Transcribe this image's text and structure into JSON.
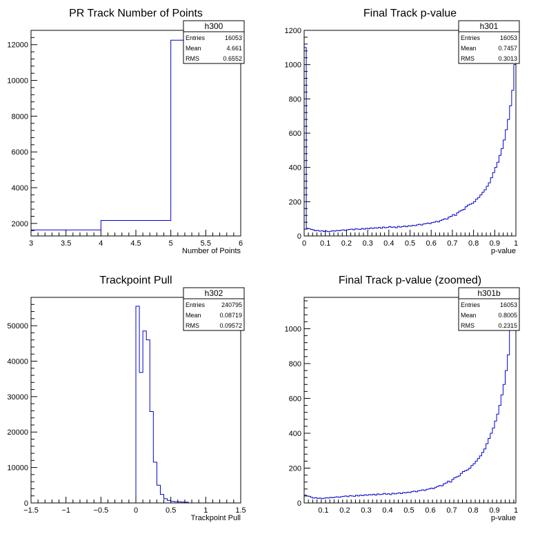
{
  "chart_data": [
    {
      "type": "histogram",
      "title": "PR Track Number of Points",
      "xlabel": "Number of Points",
      "ylabel": "",
      "xlim": [
        3,
        6
      ],
      "ylim": [
        1300,
        12800
      ],
      "xticks": [
        3,
        3.5,
        4,
        4.5,
        5,
        5.5,
        6
      ],
      "xtick_labels": [
        "3",
        "3.5",
        "4",
        "4.5",
        "5",
        "5.5",
        "6"
      ],
      "yticks": [
        2000,
        4000,
        6000,
        8000,
        10000,
        12000
      ],
      "ytick_labels": [
        "2000",
        "4000",
        "6000",
        "8000",
        "10000",
        "12000"
      ],
      "bin_edges": [
        3,
        4,
        5,
        6
      ],
      "counts": [
        1640,
        2170,
        12250
      ],
      "line_color": "#0000cc",
      "stats": {
        "name": "h300",
        "rows": [
          {
            "label": "Entries",
            "value": "16053"
          },
          {
            "label": "Mean",
            "value": "4.661"
          },
          {
            "label": "RMS",
            "value": "0.6552"
          }
        ]
      }
    },
    {
      "type": "histogram",
      "title": "Final Track p-value",
      "xlabel": "p-value",
      "ylabel": "",
      "xlim": [
        0,
        1
      ],
      "ylim": [
        0,
        1200
      ],
      "xticks": [
        0,
        0.1,
        0.2,
        0.3,
        0.4,
        0.5,
        0.6,
        0.7,
        0.8,
        0.9,
        1
      ],
      "xtick_labels": [
        "0",
        "0.1",
        "0.2",
        "0.3",
        "0.4",
        "0.5",
        "0.6",
        "0.7",
        "0.8",
        "0.9",
        "1"
      ],
      "yticks": [
        0,
        200,
        400,
        600,
        800,
        1000,
        1200
      ],
      "ytick_labels": [
        "0",
        "200",
        "400",
        "600",
        "800",
        "1000",
        "1200"
      ],
      "bin_edges_range": [
        0,
        1
      ],
      "counts": [
        1100,
        45,
        42,
        38,
        35,
        30,
        32,
        28,
        30,
        26,
        28,
        25,
        27,
        30,
        28,
        32,
        30,
        33,
        35,
        32,
        36,
        38,
        40,
        36,
        42,
        40,
        38,
        44,
        40,
        45,
        42,
        47,
        44,
        48,
        46,
        50,
        45,
        52,
        48,
        50,
        55,
        50,
        53,
        48,
        56,
        52,
        55,
        58,
        54,
        60,
        58,
        62,
        60,
        65,
        68,
        64,
        70,
        72,
        75,
        72,
        78,
        80,
        85,
        82,
        90,
        95,
        100,
        98,
        110,
        115,
        125,
        120,
        135,
        145,
        150,
        155,
        170,
        180,
        185,
        190,
        200,
        215,
        225,
        240,
        255,
        270,
        290,
        310,
        340,
        370,
        400,
        430,
        470,
        510,
        560,
        620,
        680,
        760,
        850,
        1000
      ],
      "line_color": "#0000cc",
      "stats": {
        "name": "h301",
        "rows": [
          {
            "label": "Entries",
            "value": "16053"
          },
          {
            "label": "Mean",
            "value": "0.7457"
          },
          {
            "label": "RMS",
            "value": "0.3013"
          }
        ]
      }
    },
    {
      "type": "histogram",
      "title": "Trackpoint Pull",
      "xlabel": "Trackpoint Pull",
      "ylabel": "",
      "xlim": [
        -1.5,
        1.5
      ],
      "ylim": [
        0,
        58000
      ],
      "xticks": [
        -1.5,
        -1,
        -0.5,
        0,
        0.5,
        1,
        1.5
      ],
      "xtick_labels": [
        "−1.5",
        "−1",
        "−0.5",
        "0",
        "0.5",
        "1",
        "1.5"
      ],
      "yticks": [
        0,
        10000,
        20000,
        30000,
        40000,
        50000
      ],
      "ytick_labels": [
        "0",
        "10000",
        "20000",
        "30000",
        "40000",
        "50000"
      ],
      "bin_edges_range": [
        0,
        0.75
      ],
      "counts": [
        55500,
        36800,
        48500,
        46000,
        25800,
        11500,
        5000,
        2400,
        1200,
        700,
        450,
        350,
        300,
        250,
        220
      ],
      "line_color": "#0000cc",
      "stats": {
        "name": "h302",
        "rows": [
          {
            "label": "Entries",
            "value": "240795"
          },
          {
            "label": "Mean",
            "value": "0.08719"
          },
          {
            "label": "RMS",
            "value": "0.09572"
          }
        ]
      }
    },
    {
      "type": "histogram",
      "title": "Final Track p-value (zoomed)",
      "xlabel": "p-value",
      "ylabel": "",
      "xlim": [
        0.01,
        1
      ],
      "ylim": [
        0,
        1180
      ],
      "xticks": [
        0.1,
        0.2,
        0.3,
        0.4,
        0.5,
        0.6,
        0.7,
        0.8,
        0.9,
        1
      ],
      "xtick_labels": [
        "0.1",
        "0.2",
        "0.3",
        "0.4",
        "0.5",
        "0.6",
        "0.7",
        "0.8",
        "0.9",
        "1"
      ],
      "yticks": [
        0,
        200,
        400,
        600,
        800,
        1000
      ],
      "ytick_labels": [
        "0",
        "200",
        "400",
        "600",
        "800",
        "1000"
      ],
      "bin_edges_range": [
        0.01,
        1
      ],
      "counts": [
        45,
        40,
        38,
        32,
        28,
        30,
        26,
        28,
        25,
        27,
        30,
        28,
        32,
        30,
        33,
        35,
        32,
        36,
        38,
        40,
        36,
        42,
        40,
        38,
        44,
        40,
        45,
        42,
        47,
        44,
        48,
        46,
        50,
        45,
        52,
        48,
        50,
        55,
        50,
        53,
        48,
        56,
        52,
        55,
        58,
        54,
        60,
        58,
        62,
        60,
        65,
        68,
        64,
        70,
        72,
        75,
        72,
        78,
        80,
        85,
        82,
        90,
        95,
        100,
        98,
        110,
        115,
        125,
        120,
        135,
        145,
        150,
        155,
        170,
        180,
        185,
        190,
        200,
        215,
        225,
        240,
        255,
        270,
        290,
        310,
        340,
        370,
        400,
        430,
        470,
        510,
        560,
        620,
        680,
        760,
        850,
        1000,
        1040,
        1060
      ],
      "line_color": "#0000cc",
      "stats": {
        "name": "h301b",
        "rows": [
          {
            "label": "Entries",
            "value": "16053"
          },
          {
            "label": "Mean",
            "value": "0.8005"
          },
          {
            "label": "RMS",
            "value": "0.2315"
          }
        ]
      }
    }
  ]
}
